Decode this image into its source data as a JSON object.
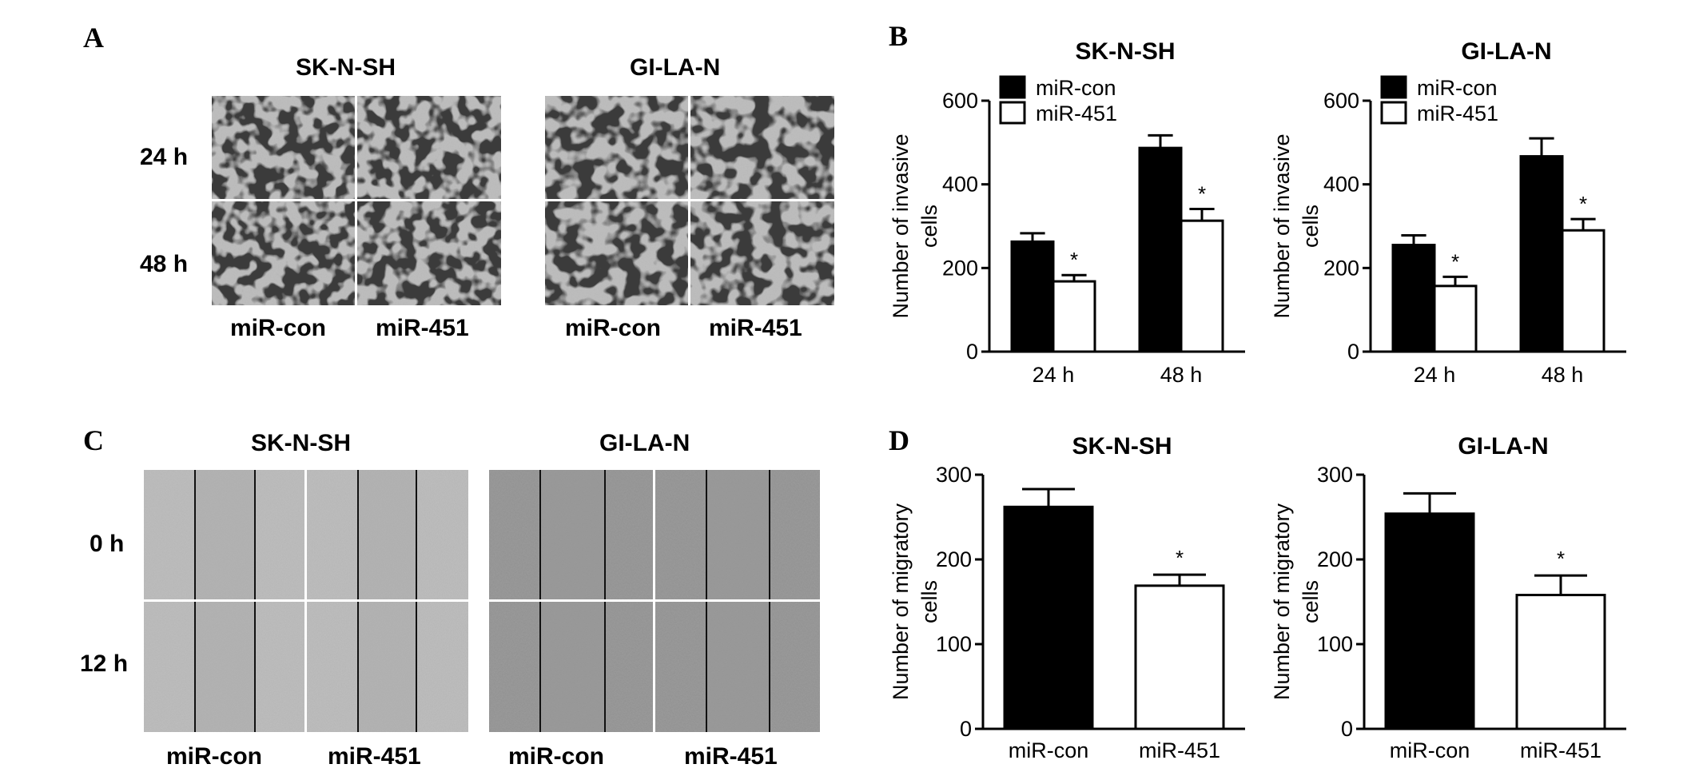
{
  "panels": {
    "A": "A",
    "B": "B",
    "C": "C",
    "D": "D"
  },
  "panel_a": {
    "cell_lines": [
      "SK-N-SH",
      "GI-LA-N"
    ],
    "time_labels": [
      "24 h",
      "48 h"
    ],
    "condition_labels": [
      "miR-con",
      "miR-451"
    ]
  },
  "panel_c": {
    "cell_lines": [
      "SK-N-SH",
      "GI-LA-N"
    ],
    "time_labels": [
      "0 h",
      "12 h"
    ],
    "condition_labels": [
      "miR-con",
      "miR-451"
    ]
  },
  "colors": {
    "miR-con": "#000000",
    "miR-451": "#ffffff"
  },
  "chart_data": [
    {
      "type": "bar",
      "panel": "B",
      "title": "SK-N-SH",
      "ylabel": "Number of invasive cells",
      "ylabel_lines": [
        "Number of invasive",
        "cells"
      ],
      "categories": [
        "24 h",
        "48 h"
      ],
      "ylim": [
        0,
        600
      ],
      "yticks": [
        0,
        200,
        400,
        600
      ],
      "legend": "top-left",
      "series": [
        {
          "name": "miR-con",
          "values": [
            263,
            487
          ],
          "errors": [
            20,
            30
          ]
        },
        {
          "name": "miR-451",
          "values": [
            168,
            313
          ],
          "errors": [
            15,
            28
          ]
        }
      ],
      "annotations": [
        {
          "series": "miR-451",
          "category": "24 h",
          "text": "*"
        },
        {
          "series": "miR-451",
          "category": "48 h",
          "text": "*"
        }
      ]
    },
    {
      "type": "bar",
      "panel": "B",
      "title": "GI-LA-N",
      "ylabel": "Number of invasive cells",
      "ylabel_lines": [
        "Number of invasive",
        "cells"
      ],
      "categories": [
        "24 h",
        "48 h"
      ],
      "ylim": [
        0,
        600
      ],
      "yticks": [
        0,
        200,
        400,
        600
      ],
      "legend": "top-left",
      "series": [
        {
          "name": "miR-con",
          "values": [
            255,
            467
          ],
          "errors": [
            23,
            43
          ]
        },
        {
          "name": "miR-451",
          "values": [
            157,
            290
          ],
          "errors": [
            22,
            27
          ]
        }
      ],
      "annotations": [
        {
          "series": "miR-451",
          "category": "24 h",
          "text": "*"
        },
        {
          "series": "miR-451",
          "category": "48 h",
          "text": "*"
        }
      ]
    },
    {
      "type": "bar",
      "panel": "D",
      "title": "SK-N-SH",
      "ylabel": "Number of migratory cells",
      "ylabel_lines": [
        "Number of migratory",
        "cells"
      ],
      "categories": [
        "miR-con",
        "miR-451"
      ],
      "ylim": [
        0,
        300
      ],
      "yticks": [
        0,
        100,
        200,
        300
      ],
      "bar_colors": [
        "#000000",
        "#ffffff"
      ],
      "values": [
        262,
        169
      ],
      "errors": [
        21,
        13
      ],
      "annotations": [
        {
          "category": "miR-451",
          "text": "*"
        }
      ]
    },
    {
      "type": "bar",
      "panel": "D",
      "title": "GI-LA-N",
      "ylabel": "Number of migratory cells",
      "ylabel_lines": [
        "Number of migratory",
        "cells"
      ],
      "categories": [
        "miR-con",
        "miR-451"
      ],
      "ylim": [
        0,
        300
      ],
      "yticks": [
        0,
        100,
        200,
        300
      ],
      "bar_colors": [
        "#000000",
        "#ffffff"
      ],
      "values": [
        254,
        158
      ],
      "errors": [
        24,
        23
      ],
      "annotations": [
        {
          "category": "miR-451",
          "text": "*"
        }
      ]
    }
  ]
}
